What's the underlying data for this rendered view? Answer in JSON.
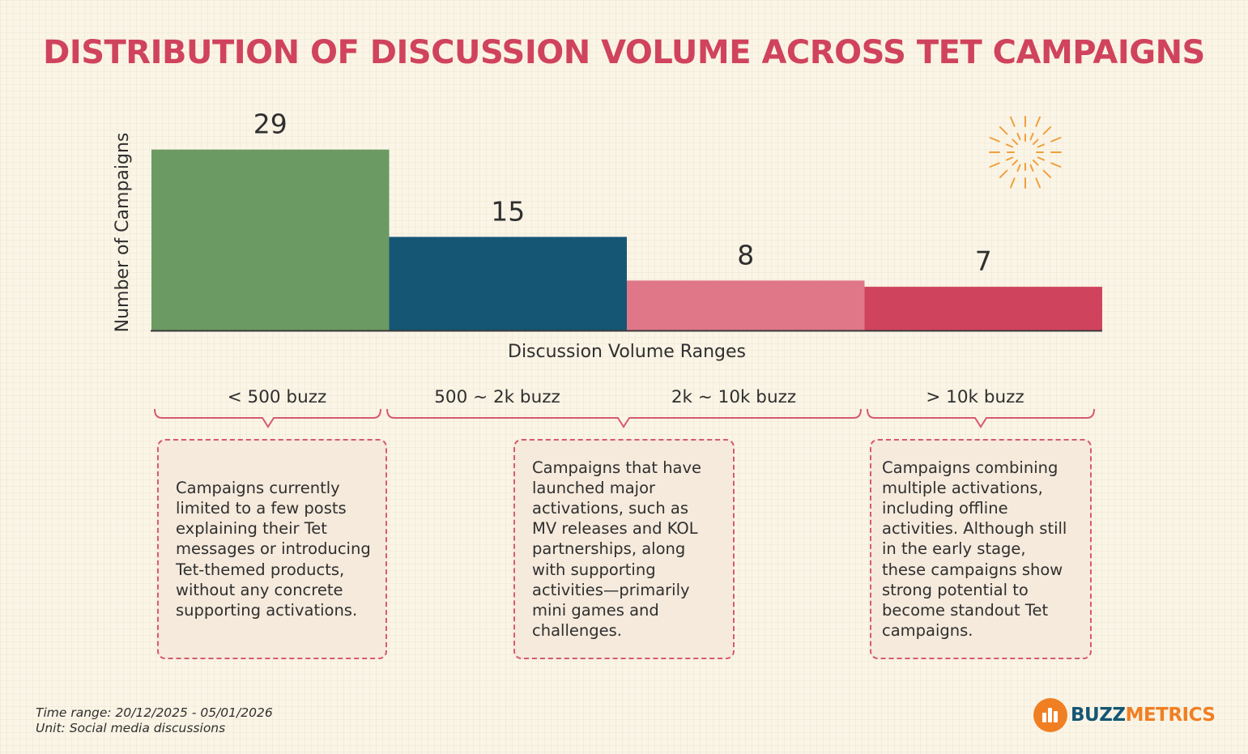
{
  "chart_data": {
    "type": "bar",
    "title": "DISTRIBUTION OF DISCUSSION VOLUME ACROSS TET CAMPAIGNS",
    "xlabel": "Discussion Volume Ranges",
    "ylabel": "Number of Campaigns",
    "ylim": [
      0,
      35
    ],
    "categories": [
      "< 500 buzz",
      "500 ~ 2k buzz",
      "2k ~ 10k buzz",
      "> 10k buzz"
    ],
    "values": [
      29,
      15,
      8,
      7
    ],
    "colors": [
      "#6b9a62",
      "#155674",
      "#df7789",
      "#d0435d"
    ]
  },
  "descriptions": [
    {
      "lines": [
        "Campaigns currently",
        "limited to a few posts",
        "explaining their Tet",
        "messages or introducing",
        "Tet-themed products,",
        "without any concrete",
        "supporting activations."
      ]
    },
    {
      "lines": [
        "Campaigns that have",
        "launched major",
        "activations, such as",
        "MV releases and KOL",
        "partnerships, along",
        "with supporting",
        "activities—primarily",
        "mini games and",
        "challenges."
      ]
    },
    {
      "lines": [
        "Campaigns combining",
        "multiple activations,",
        "including offline",
        "activities. Although still",
        "in the early stage,",
        "these campaigns show",
        "strong potential to",
        "become standout Tet",
        "campaigns."
      ]
    }
  ],
  "footer": {
    "time_range": "Time range: 20/12/2025 - 05/01/2026",
    "unit": "Unit: Social media discussions"
  },
  "logo": {
    "part1": "BUZZ",
    "part2": "METRICS",
    "color1": "#155674",
    "color2": "#f07f23"
  },
  "colors": {
    "title": "#d0435d",
    "bracket": "#d65a6e",
    "firework": "#f0a03c"
  }
}
